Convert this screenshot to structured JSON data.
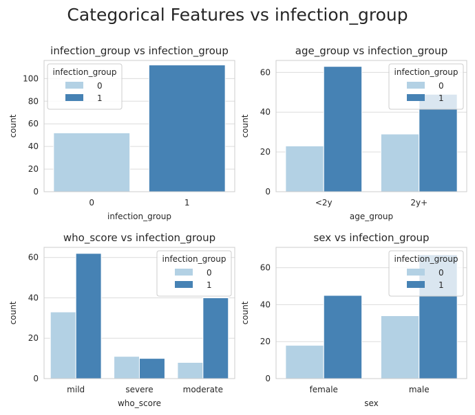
{
  "title": "Categorical Features vs infection_group",
  "colors": {
    "0": "#b3d1e4",
    "1": "#4682b4"
  },
  "chart_data": [
    {
      "type": "bar",
      "title": "infection_group vs infection_group",
      "xlabel": "infection_group",
      "ylabel": "count",
      "categories": [
        "0",
        "1"
      ],
      "ylim": [
        0,
        116
      ],
      "yticks": [
        0,
        20,
        40,
        60,
        80,
        100
      ],
      "grid": true,
      "dodge": false,
      "series": [
        {
          "name": "0",
          "values": [
            52,
            0
          ]
        },
        {
          "name": "1",
          "values": [
            0,
            112
          ]
        }
      ],
      "legend": {
        "title": "infection_group",
        "position": "upper-left",
        "labels": [
          "0",
          "1"
        ]
      }
    },
    {
      "type": "bar",
      "title": "age_group vs infection_group",
      "xlabel": "age_group",
      "ylabel": "count",
      "categories": [
        "<2y",
        "2y+"
      ],
      "ylim": [
        0,
        66
      ],
      "yticks": [
        0,
        20,
        40,
        60
      ],
      "grid": true,
      "dodge": true,
      "series": [
        {
          "name": "0",
          "values": [
            23,
            29
          ]
        },
        {
          "name": "1",
          "values": [
            63,
            49
          ]
        }
      ],
      "legend": {
        "title": "infection_group",
        "position": "upper-right",
        "labels": [
          "0",
          "1"
        ]
      }
    },
    {
      "type": "bar",
      "title": "who_score vs infection_group",
      "xlabel": "who_score",
      "ylabel": "count",
      "categories": [
        "mild",
        "severe",
        "moderate"
      ],
      "ylim": [
        0,
        65
      ],
      "yticks": [
        0,
        20,
        40,
        60
      ],
      "grid": true,
      "dodge": true,
      "series": [
        {
          "name": "0",
          "values": [
            33,
            11,
            8
          ]
        },
        {
          "name": "1",
          "values": [
            62,
            10,
            40
          ]
        }
      ],
      "legend": {
        "title": "infection_group",
        "position": "upper-right",
        "labels": [
          "0",
          "1"
        ]
      }
    },
    {
      "type": "bar",
      "title": "sex vs infection_group",
      "xlabel": "sex",
      "ylabel": "count",
      "categories": [
        "female",
        "male"
      ],
      "ylim": [
        0,
        71
      ],
      "yticks": [
        0,
        20,
        40,
        60
      ],
      "grid": true,
      "dodge": true,
      "series": [
        {
          "name": "0",
          "values": [
            18,
            34
          ]
        },
        {
          "name": "1",
          "values": [
            45,
            67
          ]
        }
      ],
      "legend": {
        "title": "infection_group",
        "position": "upper-right",
        "labels": [
          "0",
          "1"
        ]
      }
    }
  ]
}
